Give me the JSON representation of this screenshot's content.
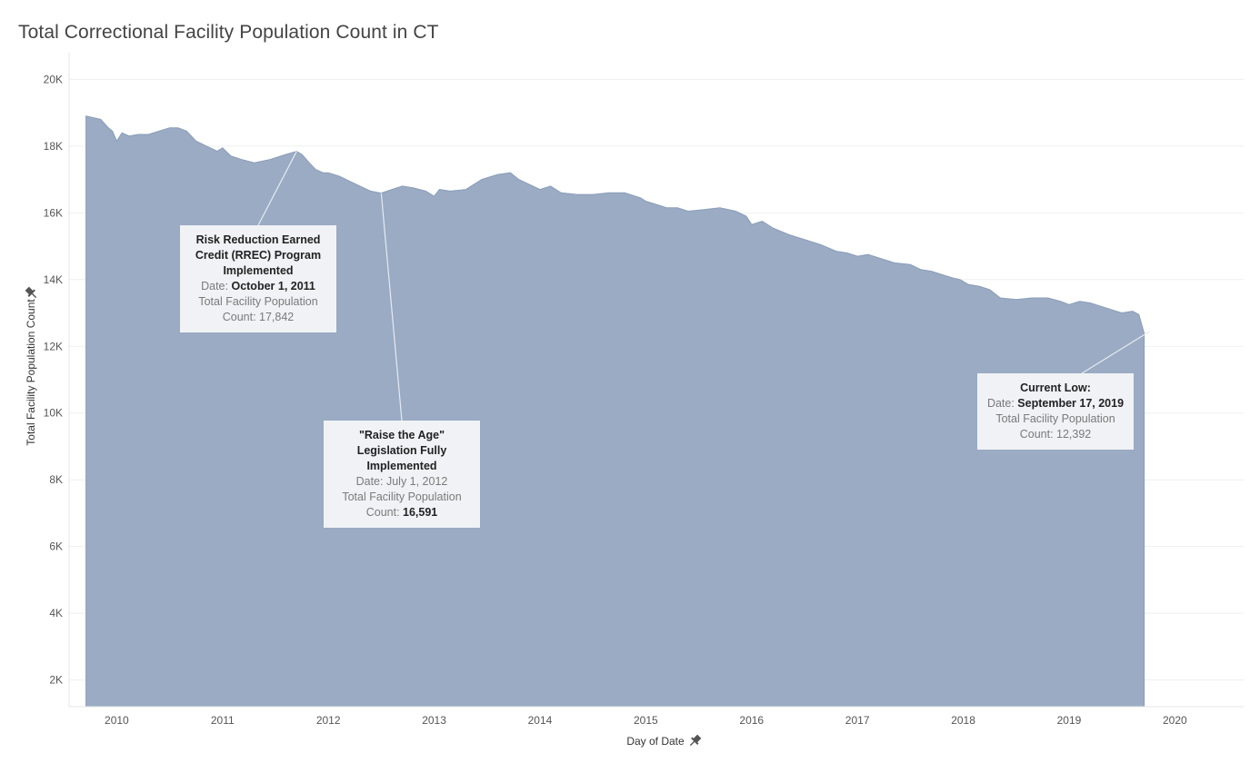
{
  "chart_data": {
    "type": "area",
    "title": "Total Correctional Facility Population Count in CT",
    "xlabel": "Day of Date",
    "ylabel": "Total Facility Population Count",
    "xlim": [
      2009.55,
      2020.65
    ],
    "ylim": [
      1200,
      20800
    ],
    "x_ticks": [
      2010,
      2011,
      2012,
      2013,
      2014,
      2015,
      2016,
      2017,
      2018,
      2019,
      2020
    ],
    "y_ticks": [
      2000,
      4000,
      6000,
      8000,
      10000,
      12000,
      14000,
      16000,
      18000,
      20000
    ],
    "y_tick_labels": [
      "2K",
      "4K",
      "6K",
      "8K",
      "10K",
      "12K",
      "14K",
      "16K",
      "18K",
      "20K"
    ],
    "grid": true,
    "color": "#9aabc3",
    "series": [
      {
        "x": [
          2009.71,
          2009.78,
          2009.85,
          2009.92,
          2009.96,
          2010.0,
          2010.05,
          2010.12,
          2010.2,
          2010.3,
          2010.4,
          2010.5,
          2010.58,
          2010.66,
          2010.75,
          2010.85,
          2010.95,
          2011.0,
          2011.08,
          2011.18,
          2011.3,
          2011.45,
          2011.6,
          2011.7,
          2011.75,
          2011.82,
          2011.88,
          2011.95,
          2012.0,
          2012.1,
          2012.2,
          2012.3,
          2012.4,
          2012.5,
          2012.6,
          2012.7,
          2012.8,
          2012.92,
          2013.0,
          2013.05,
          2013.15,
          2013.3,
          2013.45,
          2013.6,
          2013.72,
          2013.8,
          2013.9,
          2014.0,
          2014.1,
          2014.2,
          2014.35,
          2014.5,
          2014.65,
          2014.8,
          2014.95,
          2015.0,
          2015.1,
          2015.2,
          2015.3,
          2015.4,
          2015.55,
          2015.7,
          2015.85,
          2015.95,
          2016.0,
          2016.1,
          2016.2,
          2016.35,
          2016.5,
          2016.65,
          2016.8,
          2016.9,
          2017.0,
          2017.1,
          2017.2,
          2017.35,
          2017.5,
          2017.6,
          2017.7,
          2017.8,
          2017.9,
          2017.97,
          2018.05,
          2018.15,
          2018.25,
          2018.35,
          2018.5,
          2018.65,
          2018.8,
          2018.92,
          2019.0,
          2019.1,
          2019.2,
          2019.3,
          2019.45,
          2019.5,
          2019.6,
          2019.66,
          2019.71
        ],
        "y": [
          18900,
          18850,
          18800,
          18550,
          18450,
          18150,
          18400,
          18300,
          18350,
          18350,
          18450,
          18550,
          18550,
          18450,
          18150,
          18000,
          17850,
          17950,
          17700,
          17600,
          17500,
          17600,
          17750,
          17842,
          17750,
          17500,
          17300,
          17200,
          17200,
          17100,
          16950,
          16800,
          16650,
          16591,
          16700,
          16800,
          16750,
          16650,
          16500,
          16700,
          16650,
          16700,
          17000,
          17150,
          17200,
          17000,
          16850,
          16700,
          16800,
          16600,
          16550,
          16550,
          16600,
          16600,
          16450,
          16350,
          16250,
          16150,
          16150,
          16050,
          16100,
          16150,
          16050,
          15900,
          15650,
          15750,
          15550,
          15350,
          15200,
          15050,
          14850,
          14800,
          14700,
          14750,
          14650,
          14500,
          14450,
          14300,
          14250,
          14150,
          14050,
          14000,
          13850,
          13800,
          13700,
          13450,
          13400,
          13450,
          13450,
          13350,
          13250,
          13350,
          13300,
          13200,
          13050,
          13000,
          13050,
          12950,
          12392
        ]
      }
    ],
    "annotations": [
      {
        "title_lines": [
          "Risk Reduction Earned",
          "Credit (RREC) Program",
          "Implemented"
        ],
        "date_prefix": "Date: ",
        "date_value": "October 1, 2011",
        "count_line1": "Total Facility Population",
        "count_prefix": "Count: ",
        "count_value": "17,842"
      },
      {
        "title_lines": [
          "\"Raise the Age\"",
          "Legislation Fully",
          "Implemented"
        ],
        "date_text": "Date: July 1, 2012",
        "count_line1": "Total Facility Population",
        "count_prefix": "Count: ",
        "count_value": "16,591"
      },
      {
        "title_lines": [
          "Current Low:"
        ],
        "date_prefix": "Date: ",
        "date_value": "September 17, 2019",
        "count_line1": "Total Facility Population",
        "count_prefix": "Count: ",
        "count_value": "12,392"
      }
    ]
  },
  "icons": {
    "ylabel_pin": "pin-icon",
    "xlabel_pin": "pin-icon"
  }
}
